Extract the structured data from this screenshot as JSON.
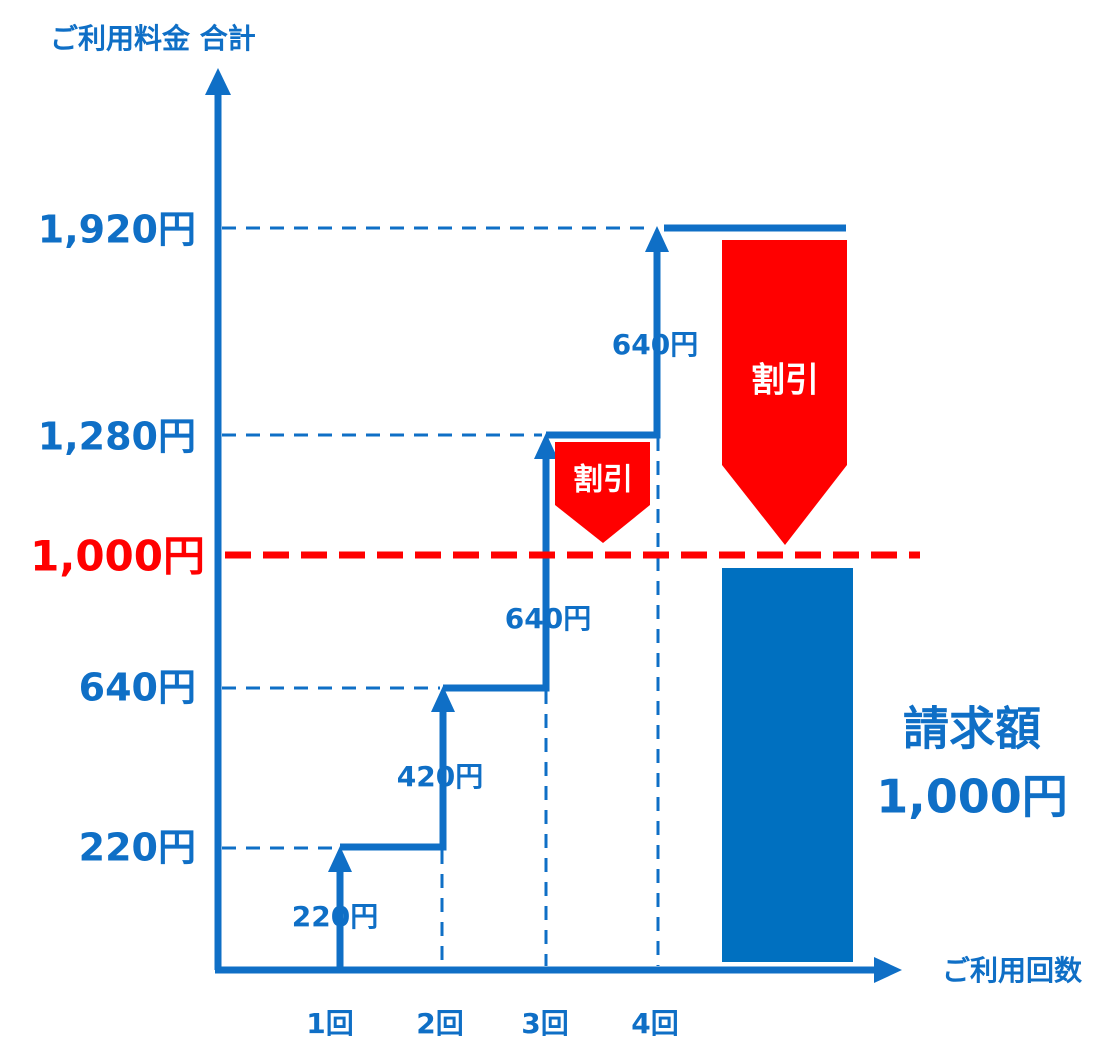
{
  "header": {
    "title": "ご利用料金 合計"
  },
  "x_axis": {
    "label": "ご利用回数",
    "ticks": [
      "1回",
      "2回",
      "3回",
      "4回"
    ]
  },
  "y_axis": {
    "ticks": [
      "1,920円",
      "1,280円",
      "640円",
      "220円"
    ],
    "threshold": "1,000円"
  },
  "steps": [
    "220円",
    "420円",
    "640円",
    "640円"
  ],
  "discounts": [
    "割引",
    "割引"
  ],
  "result": {
    "label": "請求額",
    "amount": "1,000円"
  }
}
